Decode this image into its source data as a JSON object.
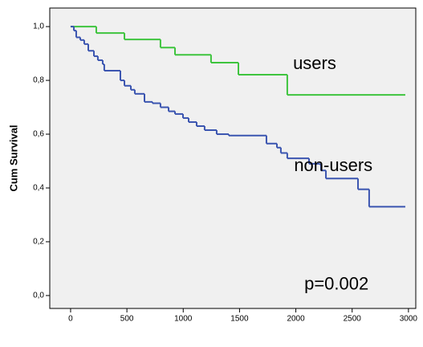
{
  "chart_data": {
    "type": "step",
    "ylabel": "Cum Survival",
    "xlim": [
      -185,
      3065
    ],
    "ylim": [
      -0.048,
      1.069
    ],
    "xticks": [
      0,
      500,
      1000,
      1500,
      2000,
      2500,
      3000
    ],
    "yticks": [
      {
        "value": 0,
        "label": "0,0"
      },
      {
        "value": 0.2,
        "label": "0,2"
      },
      {
        "value": 0.4,
        "label": "0,4"
      },
      {
        "value": 0.6,
        "label": "0,6"
      },
      {
        "value": 0.8,
        "label": "0,8"
      },
      {
        "value": 1,
        "label": "1,0"
      }
    ],
    "background": "#f0f0f0",
    "series": [
      {
        "name": "users",
        "color": "#3ec43e",
        "x": [
          0,
          228,
          478,
          798,
          927,
          1247,
          1490,
          1924,
          2972
        ],
        "values": [
          1.0,
          0.976,
          0.952,
          0.922,
          0.895,
          0.866,
          0.821,
          0.746,
          0.746
        ]
      },
      {
        "name": "non-users",
        "color": "#3b55b0",
        "x": [
          0,
          29,
          50,
          86,
          121,
          157,
          207,
          242,
          285,
          299,
          442,
          478,
          535,
          570,
          656,
          727,
          798,
          870,
          927,
          998,
          1048,
          1119,
          1190,
          1297,
          1404,
          1739,
          1832,
          1867,
          1924,
          2117,
          2210,
          2224,
          2267,
          2552,
          2651,
          2972
        ],
        "values": [
          1.0,
          0.985,
          0.96,
          0.95,
          0.935,
          0.91,
          0.89,
          0.875,
          0.86,
          0.836,
          0.8,
          0.78,
          0.765,
          0.75,
          0.72,
          0.715,
          0.7,
          0.685,
          0.675,
          0.66,
          0.645,
          0.63,
          0.615,
          0.6,
          0.595,
          0.565,
          0.55,
          0.53,
          0.51,
          0.49,
          0.488,
          0.465,
          0.435,
          0.395,
          0.33,
          0.33
        ]
      }
    ],
    "annotations": [
      {
        "text": "users",
        "x": 1975,
        "y": 0.86
      },
      {
        "text": "non-users",
        "x": 1984,
        "y": 0.48
      },
      {
        "text": "p=0.002",
        "x": 2075,
        "y": 0.04
      }
    ]
  }
}
